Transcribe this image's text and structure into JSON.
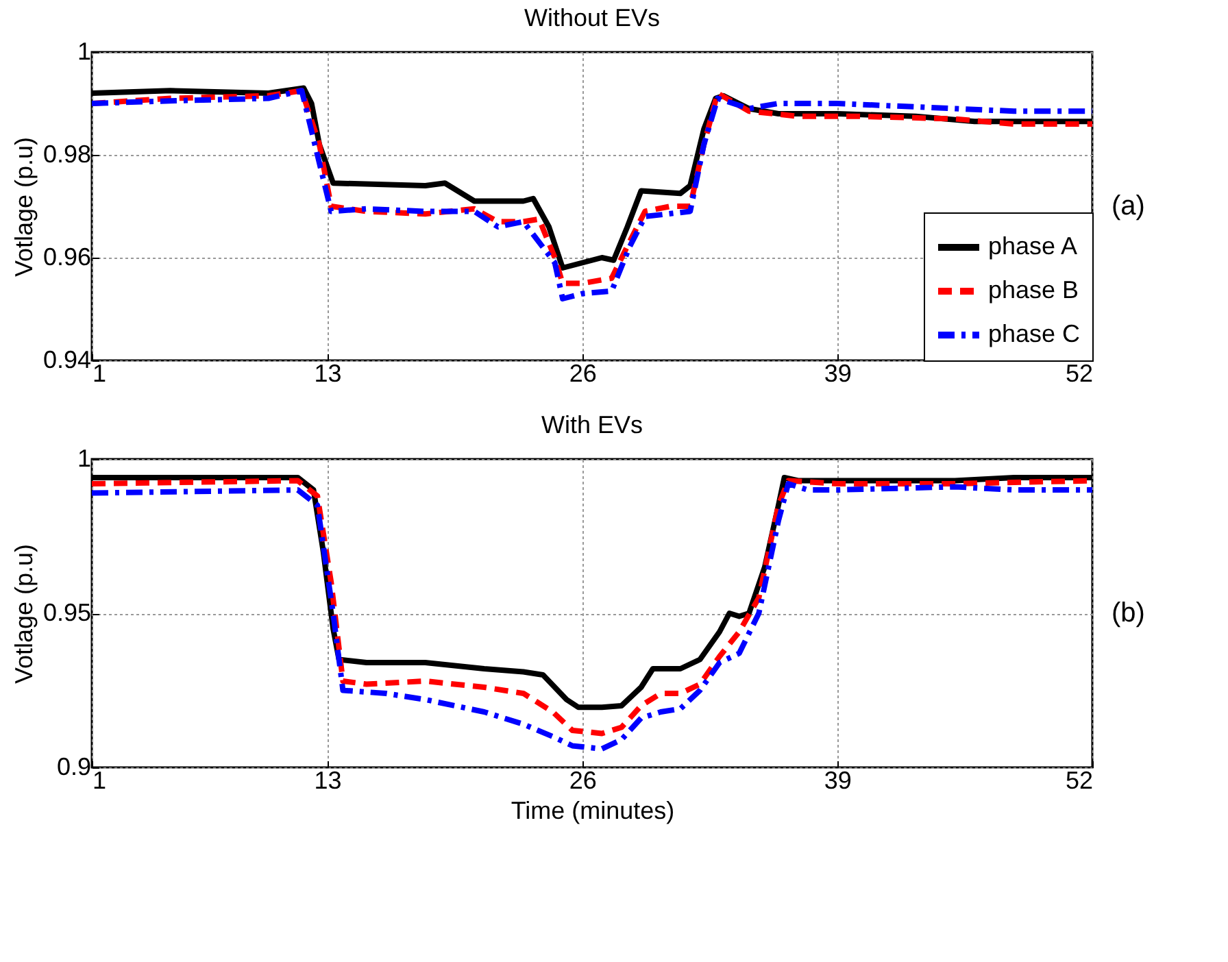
{
  "chart_data": [
    {
      "type": "line",
      "title": "Without EVs",
      "ylabel": "Votlage (p.u)",
      "xlim": [
        1,
        52
      ],
      "xticks": [
        1,
        13,
        26,
        39,
        52
      ],
      "ylim": [
        0.94,
        1
      ],
      "yticks": [
        0.94,
        0.96,
        0.98,
        1
      ],
      "grid": true,
      "legend": "bottom right",
      "annotations": [
        "(a)"
      ],
      "series": [
        {
          "name": "phase A",
          "color": "#000000",
          "line_style": "solid",
          "x": [
            1,
            5,
            10,
            11.8,
            12.2,
            12.6,
            13.3,
            18,
            19,
            20.5,
            23,
            23.5,
            24.3,
            25,
            26,
            27,
            27.6,
            28.3,
            29,
            31,
            31.5,
            32.2,
            32.8,
            33.2,
            34.5,
            36,
            39,
            43,
            46,
            48,
            52
          ],
          "values": [
            0.992,
            0.9925,
            0.992,
            0.993,
            0.99,
            0.982,
            0.9745,
            0.974,
            0.9745,
            0.971,
            0.971,
            0.9715,
            0.966,
            0.958,
            0.959,
            0.96,
            0.9595,
            0.966,
            0.973,
            0.9725,
            0.974,
            0.985,
            0.991,
            0.9915,
            0.989,
            0.988,
            0.988,
            0.9875,
            0.9865,
            0.9865,
            0.9865
          ]
        },
        {
          "name": "phase B",
          "color": "#ff0000",
          "line_style": "dashed",
          "x": [
            1,
            5,
            10,
            11.7,
            12.6,
            13.2,
            15,
            18,
            20.5,
            21.7,
            23,
            23.8,
            24.6,
            25,
            26,
            27.5,
            28.4,
            29.2,
            30.5,
            31.5,
            32.2,
            32.9,
            34.5,
            37,
            40,
            45,
            48,
            52
          ],
          "values": [
            0.99,
            0.991,
            0.9915,
            0.9925,
            0.982,
            0.97,
            0.969,
            0.9685,
            0.9695,
            0.967,
            0.967,
            0.9675,
            0.96,
            0.955,
            0.955,
            0.956,
            0.963,
            0.969,
            0.97,
            0.97,
            0.982,
            0.992,
            0.9885,
            0.9875,
            0.9875,
            0.987,
            0.986,
            0.986
          ]
        },
        {
          "name": "phase C",
          "color": "#0000ff",
          "line_style": "dashdot",
          "x": [
            1,
            5,
            10,
            11.7,
            13.2,
            15,
            18,
            20.5,
            21.7,
            23,
            24.6,
            25,
            26,
            27.5,
            28.4,
            29.2,
            31.5,
            32.2,
            32.9,
            34.5,
            36,
            39,
            42,
            45,
            48,
            52
          ],
          "values": [
            0.99,
            0.9905,
            0.991,
            0.9925,
            0.969,
            0.9695,
            0.969,
            0.969,
            0.966,
            0.967,
            0.959,
            0.952,
            0.953,
            0.9535,
            0.962,
            0.968,
            0.969,
            0.982,
            0.991,
            0.989,
            0.99,
            0.99,
            0.9895,
            0.989,
            0.9885,
            0.9885
          ]
        }
      ]
    },
    {
      "type": "line",
      "title": "With EVs",
      "xlabel": "Time (minutes)",
      "ylabel": "Votlage (p.u)",
      "xlim": [
        1,
        52
      ],
      "xticks": [
        1,
        13,
        26,
        39,
        52
      ],
      "ylim": [
        0.9,
        1
      ],
      "yticks": [
        0.9,
        0.95,
        1
      ],
      "grid": true,
      "annotations": [
        "(b)"
      ],
      "series": [
        {
          "color": "#000000",
          "line_style": "solid",
          "x": [
            1,
            11.5,
            12.3,
            12.8,
            13.3,
            13.6,
            15,
            18,
            21,
            23,
            24,
            25.2,
            25.8,
            27,
            28,
            29,
            29.6,
            31,
            32,
            33,
            33.5,
            34,
            34.5,
            35.3,
            36,
            36.3,
            37,
            39,
            45,
            48,
            52
          ],
          "values": [
            0.994,
            0.994,
            0.99,
            0.97,
            0.945,
            0.935,
            0.934,
            0.934,
            0.932,
            0.931,
            0.93,
            0.922,
            0.9195,
            0.9195,
            0.92,
            0.926,
            0.932,
            0.932,
            0.935,
            0.944,
            0.95,
            0.949,
            0.95,
            0.965,
            0.985,
            0.994,
            0.993,
            0.993,
            0.993,
            0.994,
            0.994
          ]
        },
        {
          "color": "#ff0000",
          "line_style": "dashed",
          "x": [
            1,
            11.5,
            12.5,
            13.2,
            13.8,
            15,
            18,
            21,
            23,
            24.5,
            25.5,
            27,
            28,
            29,
            30,
            31,
            32,
            33,
            34,
            35,
            36,
            36.5,
            39,
            45,
            52
          ],
          "values": [
            0.992,
            0.993,
            0.988,
            0.96,
            0.928,
            0.927,
            0.928,
            0.926,
            0.924,
            0.918,
            0.912,
            0.911,
            0.913,
            0.92,
            0.924,
            0.924,
            0.927,
            0.936,
            0.944,
            0.955,
            0.985,
            0.993,
            0.992,
            0.992,
            0.993
          ]
        },
        {
          "color": "#0000ff",
          "line_style": "dashdot",
          "x": [
            1,
            11.5,
            12.5,
            13.3,
            13.8,
            16,
            18,
            21,
            23,
            24.5,
            25.5,
            27,
            28,
            29,
            30,
            31,
            32,
            33,
            34,
            35,
            36,
            36.5,
            37.5,
            39,
            45,
            48,
            52
          ],
          "values": [
            0.989,
            0.99,
            0.985,
            0.95,
            0.925,
            0.924,
            0.922,
            0.918,
            0.914,
            0.91,
            0.907,
            0.906,
            0.909,
            0.916,
            0.918,
            0.919,
            0.925,
            0.934,
            0.937,
            0.95,
            0.98,
            0.992,
            0.99,
            0.99,
            0.991,
            0.99,
            0.99
          ]
        }
      ]
    }
  ]
}
